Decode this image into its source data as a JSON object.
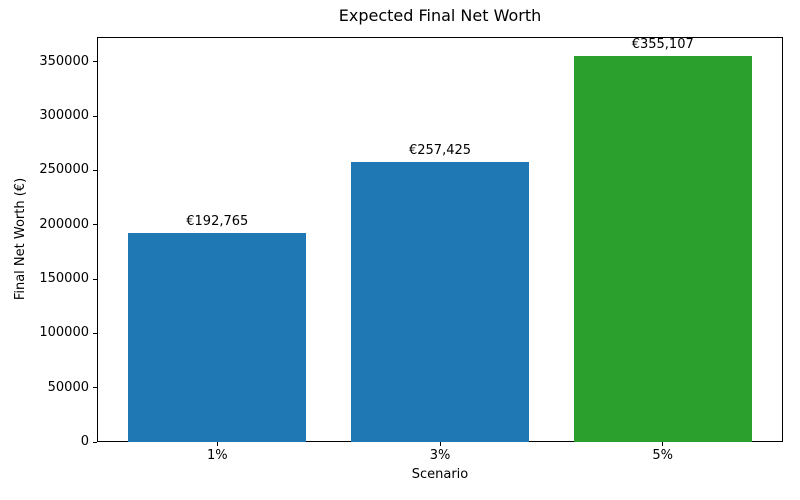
{
  "chart_data": {
    "type": "bar",
    "title": "Expected Final Net Worth",
    "xlabel": "Scenario",
    "ylabel": "Final Net Worth (€)",
    "categories": [
      "1%",
      "3%",
      "5%"
    ],
    "values": [
      192765,
      257425,
      355107
    ],
    "bar_labels": [
      "€192,765",
      "€257,425",
      "€355,107"
    ],
    "bar_colors": [
      "#1f77b4",
      "#1f77b4",
      "#2ca02c"
    ],
    "ylim": [
      0,
      372862
    ],
    "yticks": [
      0,
      50000,
      100000,
      150000,
      200000,
      250000,
      300000,
      350000
    ],
    "grid": false,
    "legend": "none",
    "background_color": "#ffffff",
    "text_color": "#000000"
  }
}
